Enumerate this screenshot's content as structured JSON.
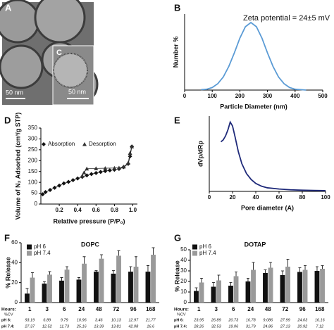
{
  "image_panel": {
    "label": "A",
    "scale_bar": "50 nm",
    "inset_label": "C",
    "inset_scale_bar": "50 nm"
  },
  "chart_data": [
    {
      "type": "line",
      "panel_label": "B",
      "annotation": "Zeta potential  = 24±5 mV",
      "x_label": "Particle Diameter (nm)",
      "y_label": "Number %",
      "x": [
        60,
        80,
        100,
        120,
        140,
        160,
        180,
        200,
        220,
        240,
        260,
        280,
        300,
        320,
        340,
        360,
        380,
        400,
        420,
        440
      ],
      "values": [
        0.1,
        0.2,
        0.6,
        1.5,
        3.1,
        5.6,
        8.8,
        12.3,
        15,
        16,
        15,
        12.3,
        8.8,
        5.6,
        3.1,
        1.5,
        0.6,
        0.2,
        0.1,
        0
      ],
      "color": "#5b9bd5",
      "xlim": [
        0,
        500
      ],
      "xticks": [
        0,
        100,
        200,
        300,
        400,
        500
      ],
      "ylim": [
        0,
        18
      ]
    },
    {
      "type": "line",
      "panel_label": "D",
      "markers": true,
      "x_label": "Relative pressure (P/P₀)",
      "y_label": "Volume of N₂ Adsorbed (cm³/g STP)",
      "series": [
        {
          "name": "Absorption",
          "color": "#111111",
          "marker": "diamond",
          "x": [
            0.02,
            0.05,
            0.1,
            0.15,
            0.2,
            0.25,
            0.3,
            0.35,
            0.4,
            0.45,
            0.5,
            0.55,
            0.6,
            0.65,
            0.7,
            0.75,
            0.8,
            0.85,
            0.9,
            0.95,
            0.97,
            0.99
          ],
          "values": [
            45,
            55,
            65,
            75,
            85,
            95,
            102,
            110,
            118,
            125,
            132,
            138,
            143,
            148,
            152,
            155,
            158,
            162,
            170,
            185,
            220,
            265
          ]
        },
        {
          "name": "Desorption",
          "color": "#333333",
          "marker": "triangle",
          "x": [
            0.99,
            0.97,
            0.95,
            0.9,
            0.85,
            0.8,
            0.7,
            0.6,
            0.5,
            0.47,
            0.45
          ],
          "values": [
            265,
            235,
            190,
            172,
            167,
            166,
            165,
            164,
            163,
            145,
            130
          ]
        }
      ],
      "xlim": [
        0,
        1.05
      ],
      "xticks": [
        0.2,
        0.4,
        0.6,
        0.8,
        {
          "value": 1,
          "label": "1.0"
        }
      ],
      "ylim": [
        0,
        350
      ],
      "yticks": [
        0,
        50,
        100,
        150,
        200,
        250,
        300,
        350
      ]
    },
    {
      "type": "line",
      "panel_label": "E",
      "x_label": "Pore diameter (A)",
      "y_label": "dVp/dRp",
      "x": [
        10,
        12,
        14,
        16,
        18,
        20,
        22,
        25,
        28,
        32,
        36,
        40,
        45,
        50,
        60,
        70,
        80,
        90,
        100
      ],
      "values": [
        12.5,
        13,
        14,
        15.5,
        17.5,
        16.5,
        14,
        10,
        7,
        4.5,
        3,
        2,
        1.3,
        0.9,
        0.6,
        0.4,
        0.3,
        0.25,
        0.2
      ],
      "color": "#1f2a7a",
      "xlim": [
        0,
        100
      ],
      "xticks": [
        0,
        20,
        40,
        60,
        80,
        100
      ],
      "ylim": [
        0,
        19
      ]
    },
    {
      "type": "bar",
      "panel_label": "F",
      "title": "DOPC",
      "y_label": "% Release",
      "x_label": "Hours:",
      "cv_label": "%CV",
      "categories": [
        "1",
        "3",
        "6",
        "24",
        "48",
        "72",
        "96",
        "168"
      ],
      "series": [
        {
          "name": "pH 6",
          "row_label": "pH 6:",
          "color": "#111111",
          "values": [
            9,
            19,
            22,
            23,
            31,
            29,
            31,
            31
          ],
          "errors": [
            5,
            2,
            3,
            2,
            1,
            3,
            5,
            6
          ],
          "cv": [
            93.19,
            6.89,
            9.79,
            10.96,
            3.46,
            10.13,
            12.97,
            21.77
          ]
        },
        {
          "name": "pH 7.4",
          "row_label": "pH 7.4:",
          "color": "#9a9a9a",
          "values": [
            25,
            28,
            33,
            39,
            44,
            47,
            36,
            48
          ],
          "errors": [
            5,
            3,
            3,
            7,
            4,
            5,
            10,
            7
          ],
          "cv": [
            27.37,
            12.52,
            11.73,
            25.16,
            13.39,
            13.81,
            42.08,
            16.6
          ]
        }
      ],
      "ylim": [
        0,
        60
      ],
      "yticks": [
        0,
        20,
        40,
        60
      ]
    },
    {
      "type": "bar",
      "panel_label": "G",
      "title": "DOTAP",
      "y_label": "% Release",
      "x_label": "Hours:",
      "cv_label": "%CV",
      "categories": [
        "1",
        "3",
        "6",
        "24",
        "48",
        "72",
        "96",
        "168"
      ],
      "series": [
        {
          "name": "pH 6",
          "row_label": "pH 6:",
          "color": "#111111",
          "values": [
            11,
            15,
            16,
            20,
            28,
            26,
            29,
            30
          ],
          "errors": [
            3,
            4,
            3,
            3,
            3,
            4,
            4,
            4
          ],
          "cv": [
            23.95,
            26.89,
            20.73,
            16.78,
            9.086,
            27.99,
            24.03,
            16.16
          ]
        },
        {
          "name": "pH 7.4",
          "row_label": "pH 7.4:",
          "color": "#9a9a9a",
          "values": [
            19,
            21,
            25,
            31,
            33,
            34,
            31,
            32
          ],
          "errors": [
            4,
            5,
            4,
            7,
            5,
            7,
            4,
            3
          ],
          "cv": [
            28.26,
            32.53,
            19.06,
            31.79,
            24.86,
            27.13,
            20.92,
            7.12
          ]
        }
      ],
      "ylim": [
        0,
        50
      ],
      "yticks": [
        0,
        10,
        20,
        30,
        40,
        50
      ]
    }
  ]
}
